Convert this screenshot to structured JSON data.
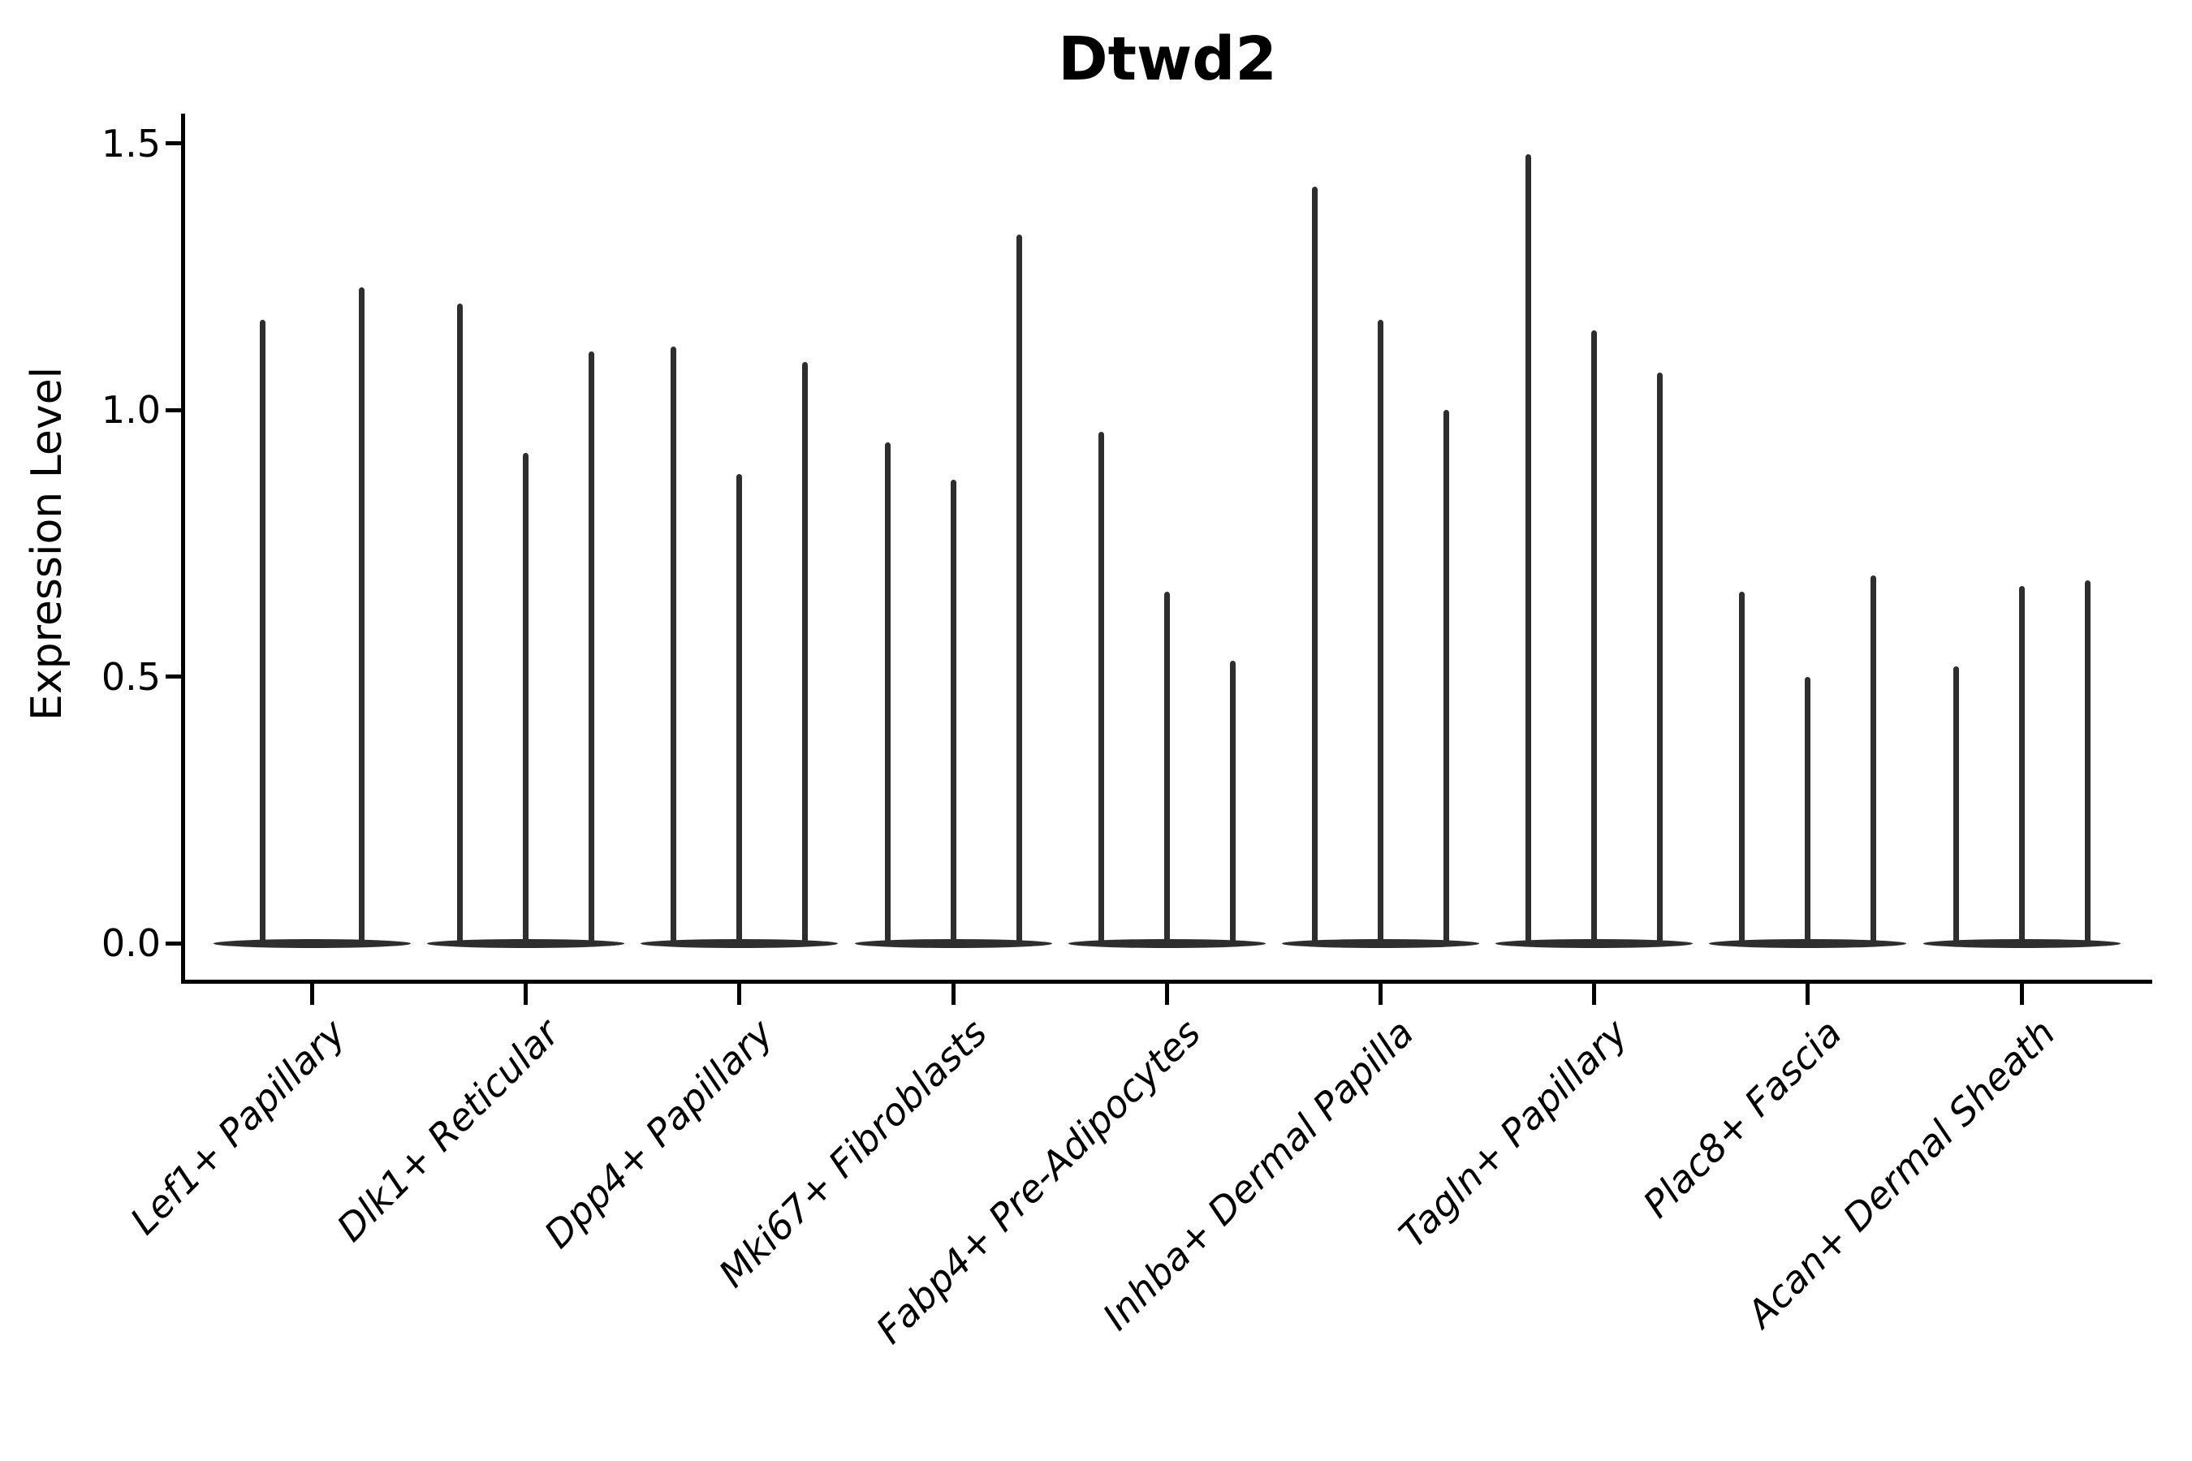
{
  "colors": {
    "violin": "#2e2e2e",
    "axis": "#000000",
    "text": "#000000",
    "background": "#ffffff"
  },
  "y_axis": {
    "label": "Expression Level",
    "tick_labels": [
      "0.0",
      "0.5",
      "1.0",
      "1.5"
    ]
  },
  "chart_data": {
    "type": "violin",
    "title": "Dtwd2",
    "xlabel": "",
    "ylabel": "Expression Level",
    "ylim": [
      0,
      1.5
    ],
    "y_ticks": [
      0.0,
      0.5,
      1.0,
      1.5
    ],
    "grid": false,
    "legend": "none",
    "violin_shape": "wide flat base at 0 with a single thin spike rising to the peak value",
    "categories": [
      "Lef1+ Papillary",
      "Dlk1+ Reticular",
      "Dpp4+ Papillary",
      "Mki67+ Fibroblasts",
      "Fabp4+ Pre-Adipocytes",
      "Inhba+ Dermal Papilla",
      "Tagln+ Papillary",
      "Plac8+ Fascia",
      "Acan+ Dermal Sheath"
    ],
    "violins_per_category": [
      2,
      3,
      3,
      3,
      3,
      3,
      3,
      3,
      3
    ],
    "series": [
      {
        "category": "Lef1+ Papillary",
        "peaks": [
          1.17,
          1.23
        ]
      },
      {
        "category": "Dlk1+ Reticular",
        "peaks": [
          1.2,
          0.92,
          1.11
        ]
      },
      {
        "category": "Dpp4+ Papillary",
        "peaks": [
          1.12,
          0.88,
          1.09
        ]
      },
      {
        "category": "Mki67+ Fibroblasts",
        "peaks": [
          0.94,
          0.87,
          1.33
        ]
      },
      {
        "category": "Fabp4+ Pre-Adipocytes",
        "peaks": [
          0.96,
          0.66,
          0.53
        ]
      },
      {
        "category": "Inhba+ Dermal Papilla",
        "peaks": [
          1.42,
          1.17,
          1.0
        ]
      },
      {
        "category": "Tagln+ Papillary",
        "peaks": [
          1.48,
          1.15,
          1.07
        ]
      },
      {
        "category": "Plac8+ Fascia",
        "peaks": [
          0.66,
          0.5,
          0.69
        ]
      },
      {
        "category": "Acan+ Dermal Sheath",
        "peaks": [
          0.52,
          0.67,
          0.68
        ]
      }
    ],
    "baseline_value": 0.0
  }
}
